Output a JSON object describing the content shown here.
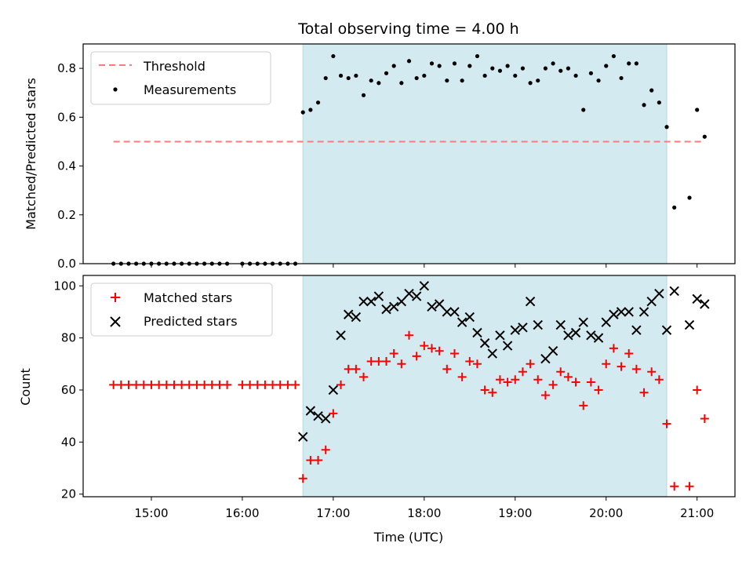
{
  "chart_data": [
    {
      "type": "scatter",
      "title": "Total observing time = 4.00 h",
      "xlabel": "",
      "ylabel": "Matched/Predicted stars",
      "xlim": [
        "14:15",
        "21:25"
      ],
      "ylim": [
        0,
        0.9
      ],
      "yticks": [
        0.0,
        0.2,
        0.4,
        0.6,
        0.8
      ],
      "ytick_labels": [
        "0.0",
        "0.2",
        "0.4",
        "0.6",
        "0.8"
      ],
      "shaded_region": {
        "start": "16:40",
        "end": "20:40",
        "color": "#d3eaf0"
      },
      "legend_position": "upper-left",
      "series": [
        {
          "name": "Threshold",
          "kind": "line",
          "style": "dashed",
          "color": "#ff7a7a",
          "x": [
            "14:35",
            "21:05"
          ],
          "y": [
            0.5,
            0.5
          ]
        },
        {
          "name": "Measurements",
          "kind": "scatter",
          "marker": "dot",
          "color": "#000000",
          "x": [
            "14:35",
            "14:40",
            "14:45",
            "14:50",
            "14:55",
            "15:00",
            "15:05",
            "15:10",
            "15:15",
            "15:20",
            "15:25",
            "15:30",
            "15:35",
            "15:40",
            "15:45",
            "15:50",
            "16:00",
            "16:05",
            "16:10",
            "16:15",
            "16:20",
            "16:25",
            "16:30",
            "16:35",
            "16:40",
            "16:45",
            "16:50",
            "16:55",
            "17:00",
            "17:05",
            "17:10",
            "17:15",
            "17:20",
            "17:25",
            "17:30",
            "17:35",
            "17:40",
            "17:45",
            "17:50",
            "17:55",
            "18:00",
            "18:05",
            "18:10",
            "18:15",
            "18:20",
            "18:25",
            "18:30",
            "18:35",
            "18:40",
            "18:45",
            "18:50",
            "18:55",
            "19:00",
            "19:05",
            "19:10",
            "19:15",
            "19:20",
            "19:25",
            "19:30",
            "19:35",
            "19:40",
            "19:45",
            "19:50",
            "19:55",
            "20:00",
            "20:05",
            "20:10",
            "20:15",
            "20:20",
            "20:25",
            "20:30",
            "20:35",
            "20:40",
            "20:45",
            "20:55",
            "21:00",
            "21:05"
          ],
          "y": [
            0,
            0,
            0,
            0,
            0,
            0,
            0,
            0,
            0,
            0,
            0,
            0,
            0,
            0,
            0,
            0,
            0,
            0,
            0,
            0,
            0,
            0,
            0,
            0,
            0.62,
            0.63,
            0.66,
            0.76,
            0.85,
            0.77,
            0.76,
            0.77,
            0.69,
            0.75,
            0.74,
            0.78,
            0.81,
            0.74,
            0.83,
            0.76,
            0.77,
            0.82,
            0.81,
            0.75,
            0.82,
            0.75,
            0.81,
            0.85,
            0.77,
            0.8,
            0.79,
            0.81,
            0.77,
            0.8,
            0.74,
            0.75,
            0.8,
            0.82,
            0.79,
            0.8,
            0.77,
            0.63,
            0.78,
            0.75,
            0.81,
            0.85,
            0.76,
            0.82,
            0.82,
            0.65,
            0.71,
            0.66,
            0.56,
            0.23,
            0.27,
            0.63,
            0.52
          ]
        }
      ]
    },
    {
      "type": "scatter",
      "title": "",
      "xlabel": "Time (UTC)",
      "ylabel": "Count",
      "xlim": [
        "14:15",
        "21:25"
      ],
      "ylim": [
        19,
        104
      ],
      "yticks": [
        20,
        40,
        60,
        80,
        100
      ],
      "ytick_labels": [
        "20",
        "40",
        "60",
        "80",
        "100"
      ],
      "xticks": [
        "15:00",
        "16:00",
        "17:00",
        "18:00",
        "19:00",
        "20:00",
        "21:00"
      ],
      "xtick_labels": [
        "15:00",
        "16:00",
        "17:00",
        "18:00",
        "19:00",
        "20:00",
        "21:00"
      ],
      "shaded_region": {
        "start": "16:40",
        "end": "20:40",
        "color": "#d3eaf0"
      },
      "legend_position": "upper-left",
      "series": [
        {
          "name": "Matched stars",
          "kind": "scatter",
          "marker": "plus",
          "color": "#ff0000",
          "x": [
            "14:35",
            "14:40",
            "14:45",
            "14:50",
            "14:55",
            "15:00",
            "15:05",
            "15:10",
            "15:15",
            "15:20",
            "15:25",
            "15:30",
            "15:35",
            "15:40",
            "15:45",
            "15:50",
            "16:00",
            "16:05",
            "16:10",
            "16:15",
            "16:20",
            "16:25",
            "16:30",
            "16:35",
            "16:40",
            "16:45",
            "16:50",
            "16:55",
            "17:00",
            "17:05",
            "17:10",
            "17:15",
            "17:20",
            "17:25",
            "17:30",
            "17:35",
            "17:40",
            "17:45",
            "17:50",
            "17:55",
            "18:00",
            "18:05",
            "18:10",
            "18:15",
            "18:20",
            "18:25",
            "18:30",
            "18:35",
            "18:40",
            "18:45",
            "18:50",
            "18:55",
            "19:00",
            "19:05",
            "19:10",
            "19:15",
            "19:20",
            "19:25",
            "19:30",
            "19:35",
            "19:40",
            "19:45",
            "19:50",
            "19:55",
            "20:00",
            "20:05",
            "20:10",
            "20:15",
            "20:20",
            "20:25",
            "20:30",
            "20:35",
            "20:40",
            "20:45",
            "20:55",
            "21:00",
            "21:05"
          ],
          "y": [
            62,
            62,
            62,
            62,
            62,
            62,
            62,
            62,
            62,
            62,
            62,
            62,
            62,
            62,
            62,
            62,
            62,
            62,
            62,
            62,
            62,
            62,
            62,
            62,
            26,
            33,
            33,
            37,
            51,
            62,
            68,
            68,
            65,
            71,
            71,
            71,
            74,
            70,
            81,
            73,
            77,
            76,
            75,
            68,
            74,
            65,
            71,
            70,
            60,
            59,
            64,
            63,
            64,
            67,
            70,
            64,
            58,
            62,
            67,
            65,
            63,
            54,
            63,
            60,
            70,
            76,
            69,
            74,
            68,
            59,
            67,
            64,
            47,
            23,
            23,
            60,
            49
          ]
        },
        {
          "name": "Predicted stars",
          "kind": "scatter",
          "marker": "x",
          "color": "#000000",
          "x": [
            "16:40",
            "16:45",
            "16:50",
            "16:55",
            "17:00",
            "17:05",
            "17:10",
            "17:15",
            "17:20",
            "17:25",
            "17:30",
            "17:35",
            "17:40",
            "17:45",
            "17:50",
            "17:55",
            "18:00",
            "18:05",
            "18:10",
            "18:15",
            "18:20",
            "18:25",
            "18:30",
            "18:35",
            "18:40",
            "18:45",
            "18:50",
            "18:55",
            "19:00",
            "19:05",
            "19:10",
            "19:15",
            "19:20",
            "19:25",
            "19:30",
            "19:35",
            "19:40",
            "19:45",
            "19:50",
            "19:55",
            "20:00",
            "20:05",
            "20:10",
            "20:15",
            "20:20",
            "20:25",
            "20:30",
            "20:35",
            "20:40",
            "20:45",
            "20:55",
            "21:00",
            "21:05"
          ],
          "y": [
            42,
            52,
            50,
            49,
            60,
            81,
            89,
            88,
            94,
            94,
            96,
            91,
            92,
            94,
            97,
            96,
            100,
            92,
            93,
            90,
            90,
            86,
            88,
            82,
            78,
            74,
            81,
            77,
            83,
            84,
            94,
            85,
            72,
            75,
            85,
            81,
            82,
            86,
            81,
            80,
            86,
            89,
            90,
            90,
            83,
            90,
            94,
            97,
            83,
            98,
            85,
            95,
            93
          ]
        }
      ]
    }
  ]
}
